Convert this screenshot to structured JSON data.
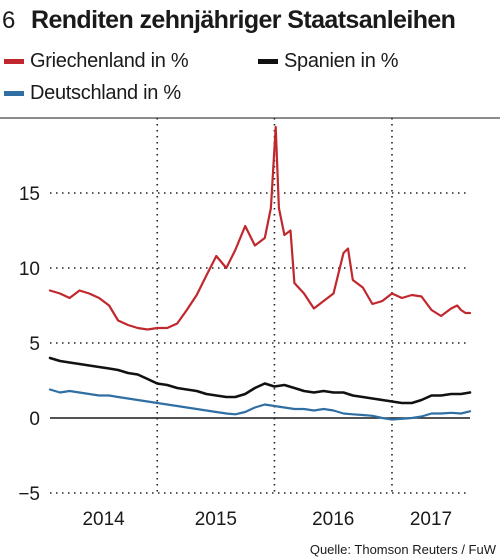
{
  "figure": {
    "number": "6",
    "title": "Renditen zehnjähriger Staatsanleihen",
    "source": "Quelle: Thomson Reuters / FuW"
  },
  "chart_data": {
    "type": "line",
    "title": "Renditen zehnjähriger Staatsanleihen",
    "xlabel": "",
    "ylabel": "",
    "x_tick_labels": [
      "2014",
      "2015",
      "2016",
      "2017"
    ],
    "y_ticks": [
      -5,
      0,
      5,
      10,
      15
    ],
    "y_tick_labels": [
      "−5",
      "0",
      "5",
      "10",
      "15"
    ],
    "xlim": [
      "2013-08-01",
      "2017-03-01"
    ],
    "ylim": [
      -5,
      20
    ],
    "grid": true,
    "legend_position": "top",
    "series": [
      {
        "name": "Griechenland in %",
        "color": "#c0282e",
        "points": [
          [
            "2013-08-01",
            8.5
          ],
          [
            "2013-09-01",
            8.3
          ],
          [
            "2013-10-01",
            8.0
          ],
          [
            "2013-11-01",
            8.5
          ],
          [
            "2013-12-01",
            8.3
          ],
          [
            "2014-01-01",
            8.0
          ],
          [
            "2014-02-01",
            7.5
          ],
          [
            "2014-03-01",
            6.5
          ],
          [
            "2014-04-01",
            6.2
          ],
          [
            "2014-05-01",
            6.0
          ],
          [
            "2014-06-01",
            5.9
          ],
          [
            "2014-07-01",
            6.0
          ],
          [
            "2014-08-01",
            6.0
          ],
          [
            "2014-09-01",
            6.3
          ],
          [
            "2014-10-01",
            7.2
          ],
          [
            "2014-11-01",
            8.2
          ],
          [
            "2014-12-01",
            9.5
          ],
          [
            "2015-01-01",
            10.8
          ],
          [
            "2015-02-01",
            10.0
          ],
          [
            "2015-03-01",
            11.2
          ],
          [
            "2015-04-01",
            12.8
          ],
          [
            "2015-05-01",
            11.5
          ],
          [
            "2015-06-01",
            12.0
          ],
          [
            "2015-06-20",
            14.0
          ],
          [
            "2015-07-05",
            19.4
          ],
          [
            "2015-07-15",
            14.0
          ],
          [
            "2015-08-01",
            12.2
          ],
          [
            "2015-08-20",
            12.5
          ],
          [
            "2015-09-01",
            9.0
          ],
          [
            "2015-10-01",
            8.3
          ],
          [
            "2015-11-01",
            7.3
          ],
          [
            "2015-12-01",
            7.8
          ],
          [
            "2016-01-01",
            8.3
          ],
          [
            "2016-02-01",
            11.0
          ],
          [
            "2016-02-15",
            11.3
          ],
          [
            "2016-03-01",
            9.2
          ],
          [
            "2016-04-01",
            8.7
          ],
          [
            "2016-05-01",
            7.6
          ],
          [
            "2016-06-01",
            7.8
          ],
          [
            "2016-07-01",
            8.3
          ],
          [
            "2016-08-01",
            8.0
          ],
          [
            "2016-09-01",
            8.2
          ],
          [
            "2016-10-01",
            8.1
          ],
          [
            "2016-11-01",
            7.2
          ],
          [
            "2016-12-01",
            6.8
          ],
          [
            "2017-01-01",
            7.3
          ],
          [
            "2017-01-20",
            7.5
          ],
          [
            "2017-02-01",
            7.2
          ],
          [
            "2017-02-15",
            7.0
          ],
          [
            "2017-03-01",
            7.0
          ]
        ]
      },
      {
        "name": "Spanien in %",
        "color": "#111111",
        "points": [
          [
            "2013-08-01",
            4.0
          ],
          [
            "2013-09-01",
            3.8
          ],
          [
            "2013-10-01",
            3.7
          ],
          [
            "2013-11-01",
            3.6
          ],
          [
            "2013-12-01",
            3.5
          ],
          [
            "2014-01-01",
            3.4
          ],
          [
            "2014-02-01",
            3.3
          ],
          [
            "2014-03-01",
            3.2
          ],
          [
            "2014-04-01",
            3.0
          ],
          [
            "2014-05-01",
            2.9
          ],
          [
            "2014-06-01",
            2.6
          ],
          [
            "2014-07-01",
            2.3
          ],
          [
            "2014-08-01",
            2.2
          ],
          [
            "2014-09-01",
            2.0
          ],
          [
            "2014-10-01",
            1.9
          ],
          [
            "2014-11-01",
            1.8
          ],
          [
            "2014-12-01",
            1.6
          ],
          [
            "2015-01-01",
            1.5
          ],
          [
            "2015-02-01",
            1.4
          ],
          [
            "2015-03-01",
            1.4
          ],
          [
            "2015-04-01",
            1.6
          ],
          [
            "2015-05-01",
            2.0
          ],
          [
            "2015-06-01",
            2.3
          ],
          [
            "2015-07-01",
            2.1
          ],
          [
            "2015-08-01",
            2.2
          ],
          [
            "2015-09-01",
            2.0
          ],
          [
            "2015-10-01",
            1.8
          ],
          [
            "2015-11-01",
            1.7
          ],
          [
            "2015-12-01",
            1.8
          ],
          [
            "2016-01-01",
            1.7
          ],
          [
            "2016-02-01",
            1.7
          ],
          [
            "2016-03-01",
            1.5
          ],
          [
            "2016-04-01",
            1.4
          ],
          [
            "2016-05-01",
            1.3
          ],
          [
            "2016-06-01",
            1.2
          ],
          [
            "2016-07-01",
            1.1
          ],
          [
            "2016-08-01",
            1.0
          ],
          [
            "2016-09-01",
            1.0
          ],
          [
            "2016-10-01",
            1.2
          ],
          [
            "2016-11-01",
            1.5
          ],
          [
            "2016-12-01",
            1.5
          ],
          [
            "2017-01-01",
            1.6
          ],
          [
            "2017-02-01",
            1.6
          ],
          [
            "2017-03-01",
            1.7
          ]
        ]
      },
      {
        "name": "Deutschland in %",
        "color": "#2f6fa3",
        "points": [
          [
            "2013-08-01",
            1.9
          ],
          [
            "2013-09-01",
            1.7
          ],
          [
            "2013-10-01",
            1.8
          ],
          [
            "2013-11-01",
            1.7
          ],
          [
            "2013-12-01",
            1.6
          ],
          [
            "2014-01-01",
            1.5
          ],
          [
            "2014-02-01",
            1.5
          ],
          [
            "2014-03-01",
            1.4
          ],
          [
            "2014-04-01",
            1.3
          ],
          [
            "2014-05-01",
            1.2
          ],
          [
            "2014-06-01",
            1.1
          ],
          [
            "2014-07-01",
            1.0
          ],
          [
            "2014-08-01",
            0.9
          ],
          [
            "2014-09-01",
            0.8
          ],
          [
            "2014-10-01",
            0.7
          ],
          [
            "2014-11-01",
            0.6
          ],
          [
            "2014-12-01",
            0.5
          ],
          [
            "2015-01-01",
            0.4
          ],
          [
            "2015-02-01",
            0.3
          ],
          [
            "2015-03-01",
            0.25
          ],
          [
            "2015-04-01",
            0.4
          ],
          [
            "2015-05-01",
            0.7
          ],
          [
            "2015-06-01",
            0.9
          ],
          [
            "2015-07-01",
            0.8
          ],
          [
            "2015-08-01",
            0.7
          ],
          [
            "2015-09-01",
            0.6
          ],
          [
            "2015-10-01",
            0.6
          ],
          [
            "2015-11-01",
            0.5
          ],
          [
            "2015-12-01",
            0.6
          ],
          [
            "2016-01-01",
            0.5
          ],
          [
            "2016-02-01",
            0.3
          ],
          [
            "2016-03-01",
            0.25
          ],
          [
            "2016-04-01",
            0.2
          ],
          [
            "2016-05-01",
            0.15
          ],
          [
            "2016-06-01",
            0.0
          ],
          [
            "2016-07-01",
            -0.1
          ],
          [
            "2016-08-01",
            -0.05
          ],
          [
            "2016-09-01",
            0.0
          ],
          [
            "2016-10-01",
            0.1
          ],
          [
            "2016-11-01",
            0.3
          ],
          [
            "2016-12-01",
            0.3
          ],
          [
            "2017-01-01",
            0.35
          ],
          [
            "2017-02-01",
            0.3
          ],
          [
            "2017-03-01",
            0.45
          ]
        ]
      }
    ]
  }
}
